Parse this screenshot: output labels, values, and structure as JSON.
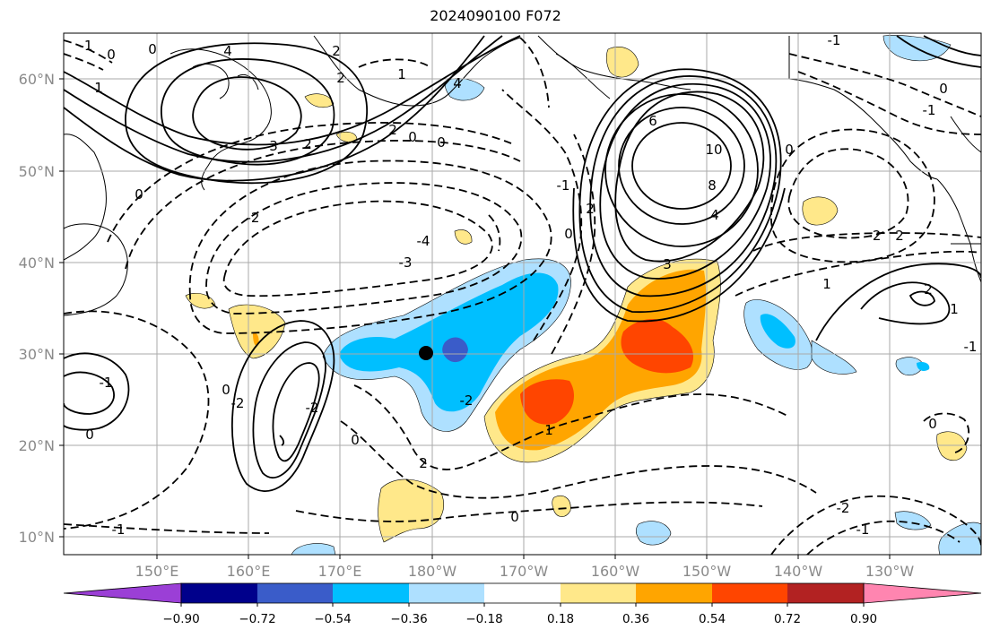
{
  "title": "2024090100 F072",
  "lon_ticks": [
    "150°E",
    "160°E",
    "170°E",
    "180°W",
    "170°W",
    "160°W",
    "150°W",
    "140°W",
    "130°W"
  ],
  "lat_ticks": [
    "60°N",
    "50°N",
    "40°N",
    "30°N",
    "20°N",
    "10°N"
  ],
  "colorbar": {
    "colors": [
      "#9b3fd6",
      "#00008b",
      "#3a5cc9",
      "#00bfff",
      "#aee0ff",
      "#ffffff",
      "#ffe88a",
      "#ffa500",
      "#ff4500",
      "#b22222",
      "#ff85b0"
    ],
    "labels": [
      "−0.90",
      "−0.72",
      "−0.54",
      "−0.36",
      "−0.18",
      "0.18",
      "0.36",
      "0.54",
      "0.72",
      "0.90"
    ]
  },
  "contour_labels": [
    "2",
    "0",
    "4",
    "1",
    "3",
    "2",
    "0",
    "0",
    "2",
    "1",
    "0",
    "-2",
    "-4",
    "-3",
    "-2",
    "6",
    "10",
    "8",
    "4",
    "3",
    "2",
    "0",
    "-1",
    "0",
    "-2",
    "0",
    "-2",
    "-1",
    "0",
    "0",
    "1",
    "2",
    "-1",
    "2",
    "-1",
    "0",
    "-2",
    "0",
    "-1",
    "2",
    "4",
    "-2",
    "0",
    "-1",
    "2",
    "-1",
    "1",
    "1",
    "-1",
    "0"
  ],
  "marker": "storm-center"
}
